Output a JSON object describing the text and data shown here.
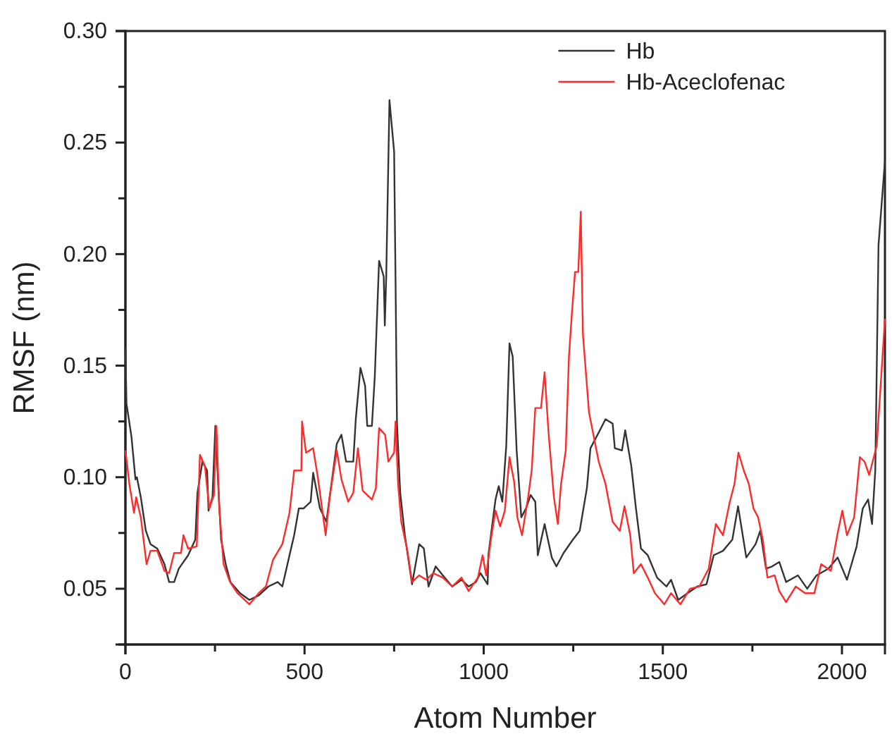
{
  "chart_data": {
    "type": "line",
    "xlabel": "Atom Number",
    "ylabel": "RMSF (nm)",
    "xlim": [
      0,
      2120
    ],
    "xticks": [
      0,
      {
        "value": 250,
        "label": null
      },
      500,
      {
        "value": 750,
        "label": null
      },
      1000,
      {
        "value": 1250,
        "label": null
      },
      1500,
      {
        "value": 1750,
        "label": null
      },
      2000
    ],
    "ylim": [
      0.025,
      0.3
    ],
    "yticks": [
      {
        "value": 0.025,
        "label": null
      },
      {
        "value": 0.05,
        "label": "0.05"
      },
      {
        "value": 0.075,
        "label": null
      },
      {
        "value": 0.1,
        "label": "0.10"
      },
      {
        "value": 0.125,
        "label": null
      },
      {
        "value": 0.15,
        "label": "0.15"
      },
      {
        "value": 0.175,
        "label": null
      },
      {
        "value": 0.2,
        "label": "0.20"
      },
      {
        "value": 0.225,
        "label": null
      },
      {
        "value": 0.25,
        "label": "0.25"
      },
      {
        "value": 0.275,
        "label": null
      },
      {
        "value": 0.3,
        "label": "0.30"
      }
    ],
    "grid": false,
    "legend": "top right",
    "line_style": "solid",
    "marker": "none",
    "series": [
      {
        "name": "Hb",
        "color": "#333333",
        "x": [
          0,
          3,
          17,
          28,
          32,
          43,
          57,
          70,
          89,
          109,
          122,
          136,
          149,
          175,
          195,
          201,
          215,
          228,
          232,
          243,
          251,
          257,
          267,
          280,
          293,
          320,
          346,
          372,
          399,
          425,
          438,
          458,
          471,
          484,
          497,
          517,
          524,
          543,
          561,
          570,
          590,
          603,
          616,
          636,
          643,
          656,
          669,
          675,
          688,
          696,
          708,
          721,
          724,
          728,
          737,
          750,
          754,
          758,
          767,
          780,
          800,
          820,
          833,
          846,
          866,
          886,
          912,
          938,
          958,
          978,
          991,
          1011,
          1013,
          1033,
          1042,
          1052,
          1063,
          1072,
          1081,
          1092,
          1105,
          1118,
          1131,
          1144,
          1151,
          1170,
          1190,
          1203,
          1223,
          1249,
          1268,
          1288,
          1298,
          1321,
          1340,
          1360,
          1366,
          1386,
          1395,
          1412,
          1425,
          1439,
          1458,
          1484,
          1510,
          1523,
          1543,
          1569,
          1596,
          1622,
          1642,
          1668,
          1694,
          1710,
          1720,
          1733,
          1759,
          1772,
          1788,
          1805,
          1825,
          1844,
          1877,
          1903,
          1929,
          1962,
          1988,
          2014,
          2041,
          2058,
          2073,
          2084,
          2093,
          2102,
          2120
        ],
        "values": [
          0.158,
          0.133,
          0.118,
          0.099,
          0.1,
          0.091,
          0.076,
          0.07,
          0.068,
          0.061,
          0.053,
          0.053,
          0.059,
          0.065,
          0.072,
          0.093,
          0.107,
          0.103,
          0.085,
          0.091,
          0.123,
          0.103,
          0.072,
          0.061,
          0.053,
          0.048,
          0.045,
          0.047,
          0.051,
          0.053,
          0.051,
          0.065,
          0.074,
          0.086,
          0.086,
          0.089,
          0.102,
          0.086,
          0.08,
          0.091,
          0.115,
          0.119,
          0.107,
          0.107,
          0.126,
          0.149,
          0.141,
          0.123,
          0.123,
          0.145,
          0.197,
          0.19,
          0.168,
          0.19,
          0.269,
          0.246,
          0.188,
          0.124,
          0.093,
          0.074,
          0.052,
          0.07,
          0.068,
          0.051,
          0.06,
          0.056,
          0.051,
          0.054,
          0.051,
          0.053,
          0.057,
          0.052,
          0.065,
          0.09,
          0.096,
          0.089,
          0.114,
          0.16,
          0.154,
          0.112,
          0.082,
          0.086,
          0.092,
          0.089,
          0.065,
          0.079,
          0.064,
          0.06,
          0.066,
          0.072,
          0.076,
          0.095,
          0.113,
          0.12,
          0.126,
          0.124,
          0.113,
          0.112,
          0.121,
          0.105,
          0.086,
          0.068,
          0.065,
          0.055,
          0.051,
          0.054,
          0.045,
          0.048,
          0.051,
          0.052,
          0.065,
          0.067,
          0.072,
          0.087,
          0.077,
          0.064,
          0.07,
          0.076,
          0.059,
          0.06,
          0.062,
          0.053,
          0.056,
          0.05,
          0.056,
          0.059,
          0.064,
          0.054,
          0.069,
          0.086,
          0.09,
          0.079,
          0.103,
          0.204,
          0.242
        ]
      },
      {
        "name": "Hb-Aceclofenac",
        "color": "#ff2a2a",
        "x": [
          0,
          11,
          24,
          30,
          43,
          59,
          70,
          89,
          109,
          122,
          136,
          155,
          162,
          175,
          199,
          208,
          222,
          234,
          247,
          254,
          262,
          274,
          292,
          313,
          346,
          372,
          392,
          412,
          438,
          458,
          471,
          491,
          493,
          504,
          524,
          537,
          559,
          570,
          590,
          603,
          622,
          636,
          649,
          662,
          688,
          699,
          708,
          725,
          734,
          750,
          754,
          761,
          770,
          787,
          800,
          820,
          840,
          859,
          886,
          912,
          938,
          958,
          984,
          997,
          1007,
          1020,
          1033,
          1046,
          1059,
          1072,
          1085,
          1094,
          1107,
          1124,
          1134,
          1144,
          1160,
          1170,
          1181,
          1196,
          1207,
          1216,
          1229,
          1238,
          1246,
          1255,
          1264,
          1271,
          1277,
          1294,
          1321,
          1340,
          1360,
          1380,
          1393,
          1409,
          1419,
          1439,
          1458,
          1478,
          1504,
          1523,
          1549,
          1576,
          1602,
          1628,
          1648,
          1668,
          1687,
          1700,
          1711,
          1726,
          1740,
          1753,
          1766,
          1779,
          1792,
          1812,
          1825,
          1844,
          1871,
          1897,
          1923,
          1942,
          1969,
          1988,
          2001,
          2014,
          2034,
          2050,
          2063,
          2076,
          2097,
          2120
        ],
        "values": [
          0.112,
          0.097,
          0.084,
          0.091,
          0.082,
          0.061,
          0.067,
          0.067,
          0.058,
          0.057,
          0.066,
          0.066,
          0.074,
          0.068,
          0.069,
          0.11,
          0.105,
          0.086,
          0.092,
          0.123,
          0.086,
          0.061,
          0.053,
          0.048,
          0.043,
          0.048,
          0.051,
          0.063,
          0.07,
          0.084,
          0.103,
          0.103,
          0.125,
          0.111,
          0.113,
          0.1,
          0.074,
          0.091,
          0.112,
          0.099,
          0.089,
          0.093,
          0.113,
          0.094,
          0.09,
          0.095,
          0.122,
          0.119,
          0.107,
          0.111,
          0.125,
          0.097,
          0.08,
          0.067,
          0.053,
          0.056,
          0.054,
          0.057,
          0.055,
          0.051,
          0.055,
          0.049,
          0.055,
          0.065,
          0.056,
          0.072,
          0.085,
          0.078,
          0.085,
          0.109,
          0.098,
          0.082,
          0.074,
          0.091,
          0.103,
          0.131,
          0.131,
          0.147,
          0.12,
          0.091,
          0.079,
          0.097,
          0.112,
          0.154,
          0.173,
          0.192,
          0.192,
          0.219,
          0.164,
          0.129,
          0.107,
          0.097,
          0.08,
          0.076,
          0.087,
          0.074,
          0.057,
          0.061,
          0.055,
          0.048,
          0.043,
          0.048,
          0.043,
          0.05,
          0.051,
          0.059,
          0.079,
          0.074,
          0.089,
          0.097,
          0.111,
          0.103,
          0.097,
          0.086,
          0.082,
          0.072,
          0.055,
          0.056,
          0.049,
          0.044,
          0.051,
          0.048,
          0.048,
          0.061,
          0.058,
          0.075,
          0.085,
          0.074,
          0.082,
          0.109,
          0.107,
          0.101,
          0.114,
          0.171
        ]
      }
    ]
  }
}
